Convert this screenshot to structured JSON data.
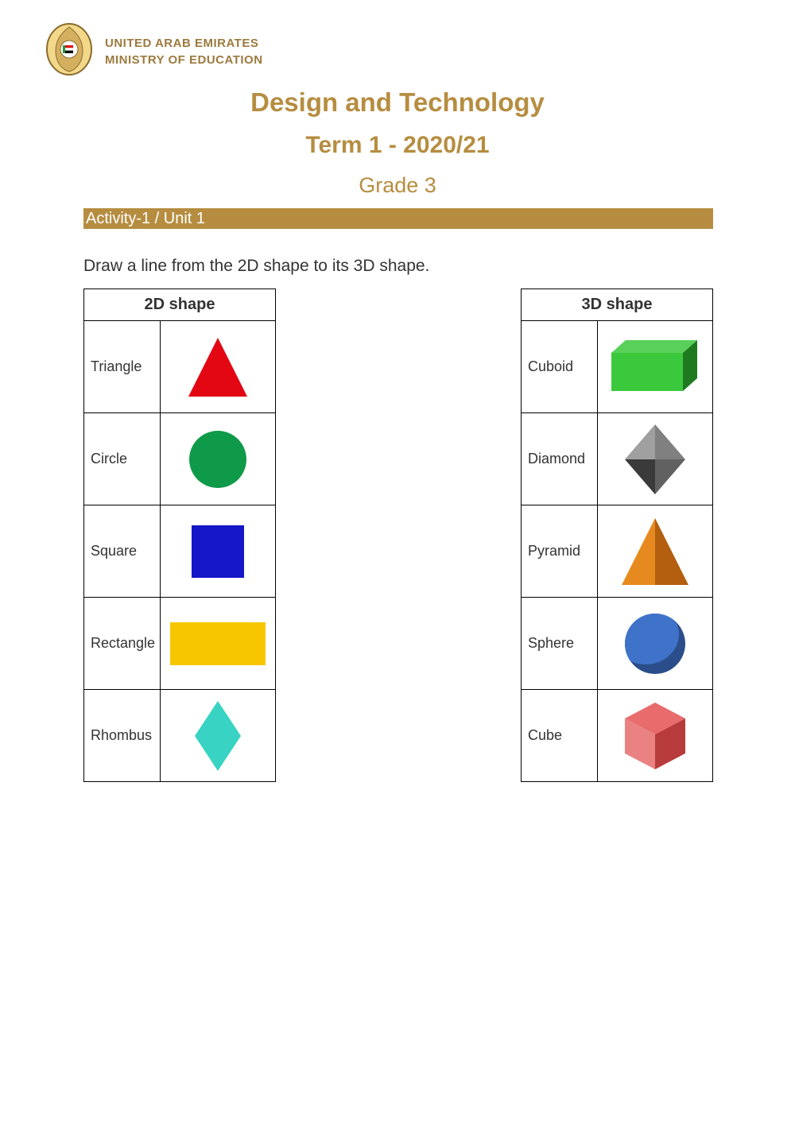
{
  "colors": {
    "accent": "#b68d40",
    "orgText": "#9c7a3e"
  },
  "header": {
    "org_line1": "UNITED ARAB EMIRATES",
    "org_line2": "MINISTRY OF EDUCATION"
  },
  "titles": {
    "main": "Design and Technology",
    "sub": "Term 1 - 2020/21",
    "grade": "Grade 3"
  },
  "activity_bar": "Activity-1 / Unit 1",
  "instruction": "Draw a line from the 2D shape to its 3D shape.",
  "table2d": {
    "header": "2D shape",
    "rows": [
      {
        "label": "Triangle",
        "shape": "triangle",
        "fill": "#e30613"
      },
      {
        "label": "Circle",
        "shape": "circle",
        "fill": "#0f9a4a"
      },
      {
        "label": "Square",
        "shape": "square",
        "fill": "#1416c7"
      },
      {
        "label": "Rectangle",
        "shape": "rectangle",
        "fill": "#f7c600"
      },
      {
        "label": "Rhombus",
        "shape": "rhombus",
        "fill": "#38d3c2"
      }
    ]
  },
  "table3d": {
    "header": "3D shape",
    "rows": [
      {
        "label": "Cuboid",
        "shape": "cuboid",
        "fill": "#3cc83c",
        "shade": "#1f7a1f"
      },
      {
        "label": "Diamond",
        "shape": "octahedron",
        "fill": "#808080",
        "shade": "#3a3a3a"
      },
      {
        "label": "Pyramid",
        "shape": "pyramid",
        "fill": "#e68a1f",
        "shade": "#b35f0f"
      },
      {
        "label": "Sphere",
        "shape": "sphere",
        "fill": "#3f73c9",
        "shade": "#2b4e8a"
      },
      {
        "label": "Cube",
        "shape": "cube",
        "fill": "#e86c6c",
        "shade": "#b83b3b"
      }
    ]
  }
}
